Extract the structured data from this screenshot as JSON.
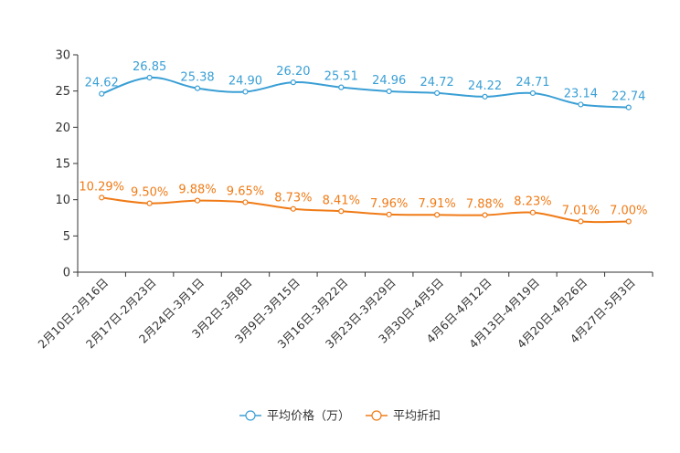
{
  "chart_data": {
    "type": "line",
    "categories": [
      "2月10日-2月16日",
      "2月17日-2月23日",
      "2月24日-3月1日",
      "3月2日-3月8日",
      "3月9日-3月15日",
      "3月16日-3月22日",
      "3月23日-3月29日",
      "3月30日-4月5日",
      "4月6日-4月12日",
      "4月13日-4月19日",
      "4月20日-4月26日",
      "4月27日-5月3日"
    ],
    "series": [
      {
        "name": "平均价格（万）",
        "color": "#3a9fd5",
        "values": [
          24.62,
          26.85,
          25.38,
          24.9,
          26.2,
          25.51,
          24.96,
          24.72,
          24.22,
          24.71,
          23.14,
          22.74
        ],
        "labels": [
          "24.62",
          "26.85",
          "25.38",
          "24.90",
          "26.20",
          "25.51",
          "24.96",
          "24.72",
          "24.22",
          "24.71",
          "23.14",
          "22.74"
        ]
      },
      {
        "name": "平均折扣",
        "color": "#f07b17",
        "values": [
          10.29,
          9.5,
          9.88,
          9.65,
          8.73,
          8.41,
          7.96,
          7.91,
          7.88,
          8.23,
          7.01,
          7.0
        ],
        "labels": [
          "10.29%",
          "9.50%",
          "9.88%",
          "9.65%",
          "8.73%",
          "8.41%",
          "7.96%",
          "7.91%",
          "7.88%",
          "8.23%",
          "7.01%",
          "7.00%"
        ]
      }
    ],
    "yticks": [
      "0",
      "5",
      "10",
      "15",
      "20",
      "25",
      "30"
    ],
    "ylim": [
      0,
      30
    ],
    "title": "",
    "xlabel": "",
    "ylabel": "",
    "legend_position": "bottom-center",
    "grid": false
  }
}
